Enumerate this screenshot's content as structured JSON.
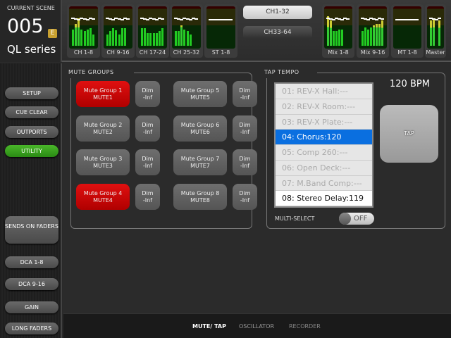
{
  "scene": {
    "label": "CURRENT SCENE",
    "number": "005",
    "badge": "E",
    "model": "QL series"
  },
  "meters": [
    {
      "label": "CH 1-8",
      "levels": [
        0.45,
        0.6,
        0.75,
        0.45,
        0.4,
        0.45,
        0.48,
        0.3
      ]
    },
    {
      "label": "CH 9-16",
      "levels": [
        0.3,
        0.4,
        0.48,
        0.42,
        0.3,
        0.48,
        0.48,
        0
      ]
    },
    {
      "label": "CH 17-24",
      "levels": [
        0.48,
        0.48,
        0.35,
        0.35,
        0.35,
        0.35,
        0.4,
        0.48
      ]
    },
    {
      "label": "CH 25-32",
      "levels": [
        0.4,
        0.4,
        0.55,
        0.45,
        0.4,
        0.3,
        0,
        0
      ]
    },
    {
      "label": "ST 1-8",
      "levels": [
        0,
        0,
        0,
        0,
        0,
        0,
        0,
        0
      ]
    },
    {
      "label": "Mix 1-8",
      "levels": [
        0.8,
        0.7,
        0.4,
        0.4,
        0.45,
        0.45,
        0,
        0
      ]
    },
    {
      "label": "Mix 9-16",
      "levels": [
        0.4,
        0.5,
        0.45,
        0.5,
        0.55,
        0.6,
        0.6,
        0.7
      ]
    },
    {
      "label": "MT 1-8",
      "levels": [
        0,
        0,
        0,
        0,
        0,
        0,
        0,
        0
      ]
    },
    {
      "label": "Master",
      "levels": [
        0.7,
        0.75,
        0,
        0.7
      ]
    }
  ],
  "bank": {
    "a": "CH1-32",
    "b": "CH33-64",
    "selected": "CH1-32"
  },
  "sidebar": [
    {
      "label": "SETUP",
      "active": false
    },
    {
      "label": "CUE CLEAR",
      "active": false
    },
    {
      "label": "OUTPORTS",
      "active": false
    },
    {
      "label": "UTILITY",
      "active": true
    },
    {
      "label": "SENDS ON FADERS",
      "active": false
    },
    {
      "label": "DCA 1-8",
      "active": false
    },
    {
      "label": "DCA 9-16",
      "active": false
    },
    {
      "label": "GAIN",
      "active": false
    },
    {
      "label": "LONG FADERS",
      "active": false
    }
  ],
  "mute_groups": {
    "title": "MUTE GROUPS",
    "groups": [
      {
        "name": "Mute Group 1",
        "id": "MUTE1",
        "on": true,
        "dim": "Dim",
        "dim_value": "-Inf"
      },
      {
        "name": "Mute Group 2",
        "id": "MUTE2",
        "on": false,
        "dim": "Dim",
        "dim_value": "-Inf"
      },
      {
        "name": "Mute Group 3",
        "id": "MUTE3",
        "on": false,
        "dim": "Dim",
        "dim_value": "-Inf"
      },
      {
        "name": "Mute Group 4",
        "id": "MUTE4",
        "on": true,
        "dim": "Dim",
        "dim_value": "-Inf"
      },
      {
        "name": "Mute Group 5",
        "id": "MUTE5",
        "on": false,
        "dim": "Dim",
        "dim_value": "-Inf"
      },
      {
        "name": "Mute Group 6",
        "id": "MUTE6",
        "on": false,
        "dim": "Dim",
        "dim_value": "-Inf"
      },
      {
        "name": "Mute Group 7",
        "id": "MUTE7",
        "on": false,
        "dim": "Dim",
        "dim_value": "-Inf"
      },
      {
        "name": "Mute Group 8",
        "id": "MUTE8",
        "on": false,
        "dim": "Dim",
        "dim_value": "-Inf"
      }
    ]
  },
  "tap_tempo": {
    "title": "TAP TEMPO",
    "bpm": "120 BPM",
    "tap": "TAP",
    "multi_select": "MULTI-SELECT",
    "toggle": "OFF",
    "items": [
      {
        "text": "01: REV-X Hall:---",
        "state": "inactive"
      },
      {
        "text": "02: REV-X Room:---",
        "state": "inactive"
      },
      {
        "text": "03: REV-X Plate:---",
        "state": "inactive"
      },
      {
        "text": "04: Chorus:120",
        "state": "selected"
      },
      {
        "text": "05: Comp 260:---",
        "state": "inactive"
      },
      {
        "text": "06: Open Deck:---",
        "state": "inactive"
      },
      {
        "text": "07: M.Band Comp:---",
        "state": "inactive"
      },
      {
        "text": "08: Stereo Delay:119",
        "state": "active"
      }
    ]
  },
  "tabs": [
    {
      "label": "MUTE/ TAP",
      "active": true
    },
    {
      "label": "OSCILLATOR",
      "active": false
    },
    {
      "label": "RECORDER",
      "active": false
    }
  ]
}
